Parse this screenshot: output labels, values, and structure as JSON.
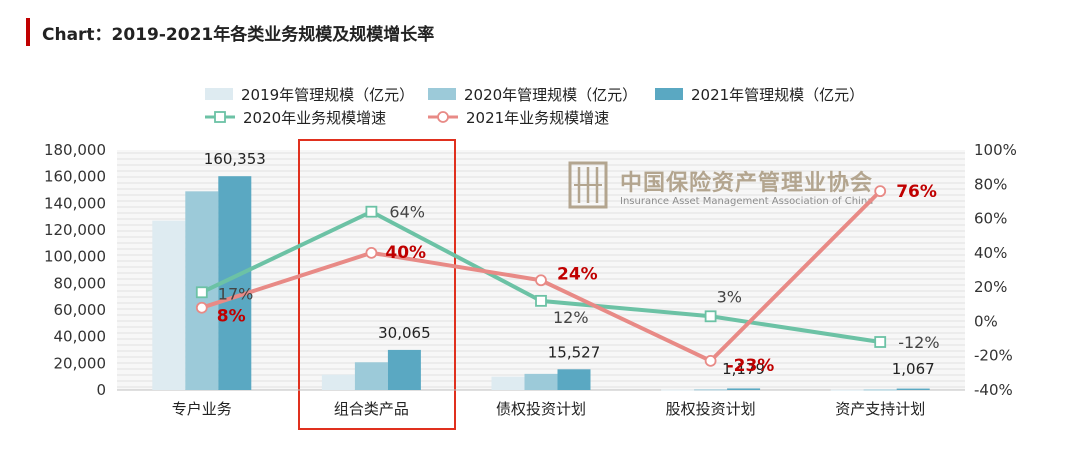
{
  "title": "Chart：2019-2021年各类业务规模及规模增长率",
  "watermark": {
    "cn": "中国保险资产管理业协会",
    "en": "Insurance Asset Management Association of China"
  },
  "chart_data": {
    "type": "bar",
    "categories": [
      "专户业务",
      "组合类产品",
      "债权投资计划",
      "股权投资计划",
      "资产支持计划"
    ],
    "highlighted_category": "组合类产品",
    "y_left": {
      "ylim": [
        0,
        180000
      ],
      "ticks": [
        "0",
        "20,000",
        "40,000",
        "60,000",
        "80,000",
        "100,000",
        "120,000",
        "140,000",
        "160,000",
        "180,000"
      ]
    },
    "y_right": {
      "ylim": [
        -40,
        100
      ],
      "ticks": [
        "-40%",
        "-20%",
        "0%",
        "20%",
        "40%",
        "60%",
        "80%",
        "100%"
      ]
    },
    "bar_series": [
      {
        "name": "2019年管理规模（亿元）",
        "color": "#deebf1",
        "values": [
          127000,
          11500,
          10000,
          300,
          250
        ]
      },
      {
        "name": "2020年管理规模（亿元）",
        "color": "#9ccad9",
        "values": [
          149000,
          20800,
          12100,
          500,
          430
        ]
      },
      {
        "name": "2021年管理规模（亿元）",
        "color": "#5aa8c2",
        "values": [
          160353,
          30065,
          15527,
          1179,
          1067
        ]
      }
    ],
    "bar_labels": [
      "160,353",
      "30,065",
      "15,527",
      "1,179",
      "1,067"
    ],
    "line_series": [
      {
        "name": "2020年业务规模增速",
        "color": "#6cc2a5",
        "marker": "square",
        "values": [
          17,
          64,
          12,
          3,
          -12
        ],
        "labels": [
          "17%",
          "64%",
          "12%",
          "3%",
          "-12%"
        ]
      },
      {
        "name": "2021年业务规模增速",
        "color": "#e88a86",
        "marker": "circle",
        "values": [
          8,
          40,
          24,
          -23,
          76
        ],
        "labels": [
          "8%",
          "40%",
          "24%",
          "-23%",
          "76%"
        ]
      }
    ],
    "legend_position": "top",
    "grid": false
  }
}
